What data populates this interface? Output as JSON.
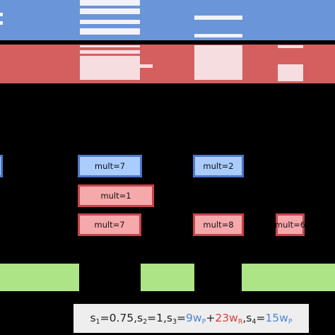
{
  "colors": {
    "blue_band": "#6a95d8",
    "red_band": "#d35f5f",
    "blue_box_fill": "#aaccff",
    "blue_box_border": "#4d79c8",
    "red_box_fill": "#f6a9ab",
    "red_box_border": "#c8434a",
    "green_block": "#ace486",
    "background": "#000000",
    "w_p_color": "#4f86d6",
    "w_r_color": "#d9413f"
  },
  "blue_row_boxes": [
    {
      "label": "mult=7"
    },
    {
      "label": "mult=2"
    }
  ],
  "red_row_1_boxes": [
    {
      "label": "mult=1"
    }
  ],
  "red_row_2_boxes": [
    {
      "label": "mult=7"
    },
    {
      "label": "mult=8"
    },
    {
      "label": "mult=6"
    }
  ],
  "legend": {
    "s1_label": "s",
    "s1_sub": "1",
    "s1_value": "=0.75, ",
    "s2_label": "s",
    "s2_sub": "2",
    "s2_value": "=1, ",
    "s3_label": "s",
    "s3_sub": "3",
    "s3_eq": "=",
    "s3_p_coeff": "9w",
    "s3_p_sub": "P",
    "s3_plus": "+",
    "s3_r_coeff": "23w",
    "s3_r_sub": "R",
    "s3_sep": ", ",
    "s4_label": "s",
    "s4_sub": "4",
    "s4_eq": "=",
    "s4_p_coeff": "15w",
    "s4_p_sub": "P"
  }
}
